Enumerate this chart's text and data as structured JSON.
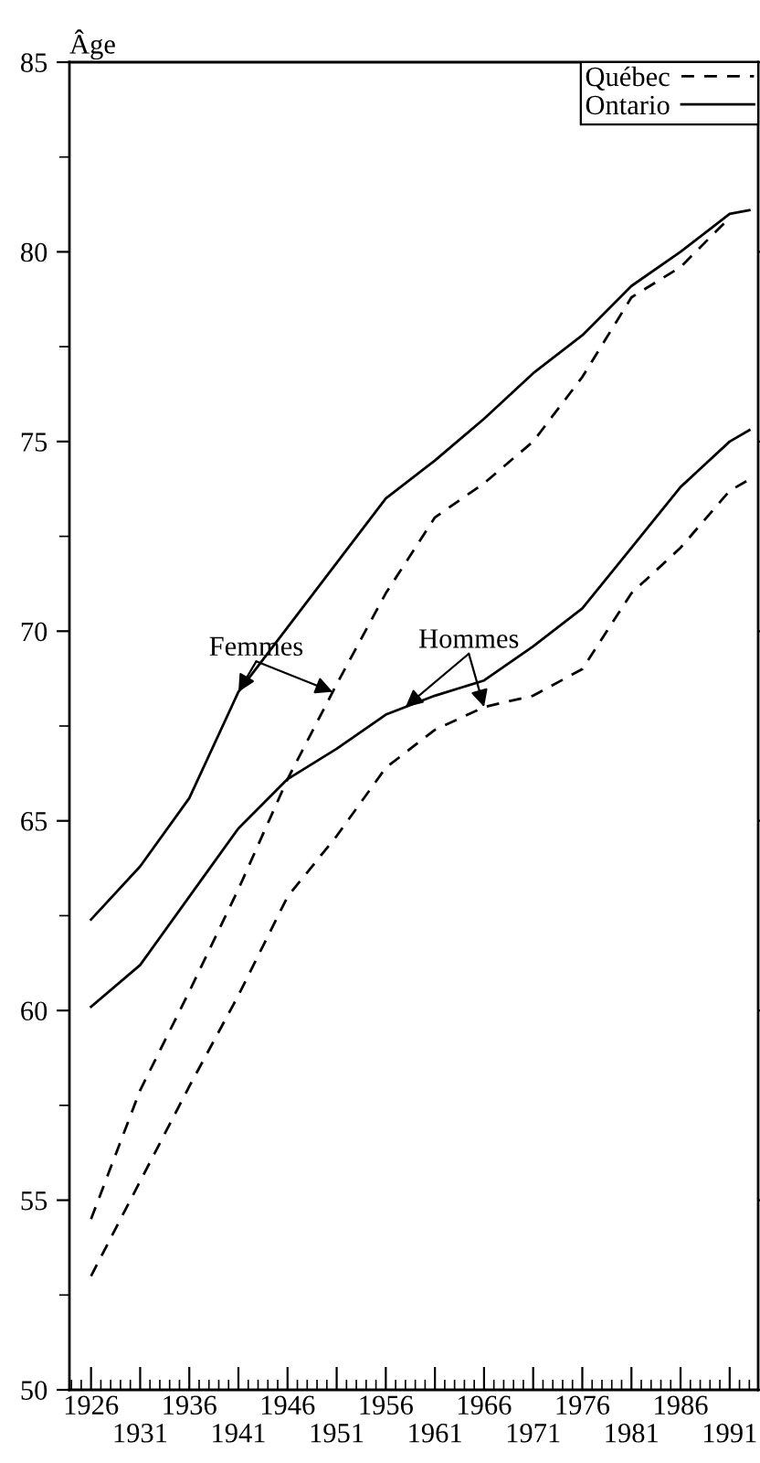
{
  "chart_data": {
    "type": "line",
    "ylabel": "Âge",
    "xlim": [
      1923.8,
      1993.9
    ],
    "ylim": [
      50,
      85
    ],
    "xticks": [
      1926,
      {
        "value": 1931,
        "label": null
      },
      1936,
      {
        "value": 1941,
        "label": null
      },
      1946,
      {
        "value": 1951,
        "label": null
      },
      1956,
      {
        "value": 1961,
        "label": null
      },
      1966,
      {
        "value": 1971,
        "label": null
      },
      1976,
      {
        "value": 1981,
        "label": null
      },
      1986,
      {
        "value": 1991,
        "label": null
      }
    ],
    "x2lim": [
      1923.8,
      1993.9
    ],
    "x2ticks": [
      1931,
      1941,
      1951,
      1961,
      1971,
      1981,
      1991
    ],
    "yticks": [
      50,
      55,
      60,
      65,
      70,
      75,
      80,
      85
    ],
    "grid": false,
    "legend": "top right",
    "marker": "none",
    "series": [
      {
        "name": "Québec",
        "color": "#000000",
        "line_style": "dashed",
        "x": [
          1926,
          1931,
          1936,
          1941,
          1946,
          1951,
          1956,
          1961,
          1966,
          1971,
          1976,
          1981,
          1986,
          1991
        ],
        "values": [
          54.5,
          57.9,
          60.5,
          63.2,
          66.1,
          68.6,
          71.0,
          73.0,
          73.9,
          75.0,
          76.7,
          78.8,
          79.6,
          80.9
        ]
      },
      {
        "name": "Ontario",
        "color": "#000000",
        "line_style": "solid",
        "x": [
          1926,
          1931,
          1936,
          1941,
          1946,
          1951,
          1956,
          1961,
          1966,
          1971,
          1976,
          1981,
          1986,
          1991,
          1993
        ],
        "values": [
          62.4,
          63.8,
          65.6,
          68.4,
          70.1,
          71.8,
          73.5,
          74.5,
          75.6,
          76.8,
          77.8,
          79.1,
          80.0,
          81.0,
          81.1
        ]
      },
      {
        "color": "#000000",
        "line_style": "dashed",
        "x": [
          1926,
          1931,
          1936,
          1941,
          1946,
          1951,
          1956,
          1961,
          1966,
          1971,
          1976,
          1981,
          1986,
          1991,
          1993
        ],
        "values": [
          53.0,
          55.5,
          58.0,
          60.4,
          63.0,
          64.6,
          66.4,
          67.4,
          68.0,
          68.3,
          69.0,
          71.0,
          72.2,
          73.7,
          74.0
        ]
      },
      {
        "color": "#000000",
        "line_style": "solid",
        "x": [
          1926,
          1931,
          1936,
          1941,
          1946,
          1951,
          1956,
          1961,
          1966,
          1971,
          1976,
          1981,
          1986,
          1991,
          1993
        ],
        "values": [
          60.1,
          61.2,
          63.0,
          64.8,
          66.1,
          66.9,
          67.8,
          68.3,
          68.7,
          69.6,
          70.6,
          72.2,
          73.8,
          75.0,
          75.3
        ]
      }
    ],
    "annotations": [
      {
        "text": "Femmes",
        "x": 1941,
        "y": 68.4
      },
      {
        "text": "Hommes",
        "x": 1966,
        "y": 68.0
      }
    ]
  }
}
